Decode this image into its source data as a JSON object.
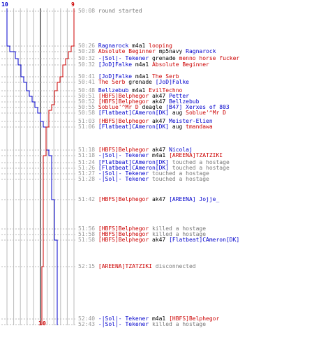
{
  "header": {
    "left_count": "10",
    "right_count": "9",
    "bottom_left": "1",
    "bottom_right": "0"
  },
  "colors": {
    "blue": "#0000cc",
    "red": "#cc0000",
    "gray": "#777777",
    "grid": "#bbbbbb"
  },
  "log": [
    {
      "time": "50:08",
      "segs": [
        {
          "t": "round started",
          "c": "g"
        }
      ]
    },
    {
      "time": "50:26",
      "segs": [
        {
          "t": "Ragnarock",
          "c": "b"
        },
        {
          "t": " m4a1 ",
          "c": "k"
        },
        {
          "t": "looping",
          "c": "r"
        }
      ]
    },
    {
      "time": "50:28",
      "segs": [
        {
          "t": "Absolute Beginner",
          "c": "r"
        },
        {
          "t": " mp5navy ",
          "c": "k"
        },
        {
          "t": "Ragnarock",
          "c": "b"
        }
      ]
    },
    {
      "time": "50:32",
      "segs": [
        {
          "t": "-|Sol|- Tekener",
          "c": "b"
        },
        {
          "t": " grenade ",
          "c": "k"
        },
        {
          "t": "menno horse fucker",
          "c": "r"
        }
      ]
    },
    {
      "time": "50:32",
      "segs": [
        {
          "t": "[JoD]Falke",
          "c": "b"
        },
        {
          "t": " m4a1 ",
          "c": "k"
        },
        {
          "t": "Absolute Beginner",
          "c": "r"
        }
      ]
    },
    {
      "time": "50:41",
      "segs": [
        {
          "t": "[JoD]Falke",
          "c": "b"
        },
        {
          "t": " m4a1 ",
          "c": "k"
        },
        {
          "t": "The Serb",
          "c": "r"
        }
      ]
    },
    {
      "time": "50:41",
      "segs": [
        {
          "t": "The Serb",
          "c": "r"
        },
        {
          "t": " grenade ",
          "c": "k"
        },
        {
          "t": "[JoD]Falke",
          "c": "b"
        }
      ]
    },
    {
      "time": "50:48",
      "segs": [
        {
          "t": "Bellzebub",
          "c": "b"
        },
        {
          "t": " m4a1 ",
          "c": "k"
        },
        {
          "t": "EvilTechno",
          "c": "r"
        }
      ]
    },
    {
      "time": "50:51",
      "segs": [
        {
          "t": "[HBFS]Belphegor",
          "c": "r"
        },
        {
          "t": " ak47 ",
          "c": "k"
        },
        {
          "t": "Petter",
          "c": "b"
        }
      ]
    },
    {
      "time": "50:52",
      "segs": [
        {
          "t": "[HBFS]Belphegor",
          "c": "r"
        },
        {
          "t": " ak47 ",
          "c": "k"
        },
        {
          "t": "Bellzebub",
          "c": "b"
        }
      ]
    },
    {
      "time": "50:55",
      "segs": [
        {
          "t": "Soblue'^Mr D",
          "c": "r"
        },
        {
          "t": " deagle ",
          "c": "k"
        },
        {
          "t": "[B47] Xerxes of 803",
          "c": "b"
        }
      ]
    },
    {
      "time": "50:58",
      "segs": [
        {
          "t": "[Flatbeat]CAmeron[DK]",
          "c": "b"
        },
        {
          "t": " aug ",
          "c": "k"
        },
        {
          "t": "Soblue'^Mr D",
          "c": "r"
        }
      ]
    },
    {
      "time": "51:03",
      "segs": [
        {
          "t": "[HBFS]Belphegor",
          "c": "r"
        },
        {
          "t": " ak47 ",
          "c": "k"
        },
        {
          "t": "Meister-Elien",
          "c": "b"
        }
      ]
    },
    {
      "time": "51:06",
      "segs": [
        {
          "t": "[Flatbeat]CAmeron[DK]",
          "c": "b"
        },
        {
          "t": " aug ",
          "c": "k"
        },
        {
          "t": "tmandawa",
          "c": "r"
        }
      ]
    },
    {
      "time": "51:18",
      "segs": [
        {
          "t": "[HBFS]Belphegor",
          "c": "r"
        },
        {
          "t": " ak47 ",
          "c": "k"
        },
        {
          "t": "Nicolaj",
          "c": "b"
        }
      ]
    },
    {
      "time": "51:18",
      "segs": [
        {
          "t": "-|Sol|- Tekener",
          "c": "b"
        },
        {
          "t": " m4a1 ",
          "c": "k"
        },
        {
          "t": "[AREENA]TZATZIKI",
          "c": "r"
        }
      ]
    },
    {
      "time": "51:24",
      "segs": [
        {
          "t": "[Flatbeat]CAmeron[DK]",
          "c": "b"
        },
        {
          "t": " touched a hostage",
          "c": "g"
        }
      ]
    },
    {
      "time": "51:26",
      "segs": [
        {
          "t": "[Flatbeat]CAmeron[DK]",
          "c": "b"
        },
        {
          "t": " touched a hostage",
          "c": "g"
        }
      ]
    },
    {
      "time": "51:27",
      "segs": [
        {
          "t": "-|Sol|- Tekener",
          "c": "b"
        },
        {
          "t": " touched a hostage",
          "c": "g"
        }
      ]
    },
    {
      "time": "51:28",
      "segs": [
        {
          "t": "-|Sol|- Tekener",
          "c": "b"
        },
        {
          "t": " touched a hostage",
          "c": "g"
        }
      ]
    },
    {
      "time": "51:42",
      "segs": [
        {
          "t": "[HBFS]Belphegor",
          "c": "r"
        },
        {
          "t": " ak47 ",
          "c": "k"
        },
        {
          "t": "[AREENA] Jojje_",
          "c": "b"
        }
      ]
    },
    {
      "time": "51:56",
      "segs": [
        {
          "t": "[HBFS]Belphegor",
          "c": "r"
        },
        {
          "t": " killed a hostage",
          "c": "g"
        }
      ]
    },
    {
      "time": "51:58",
      "segs": [
        {
          "t": "[HBFS]Belphegor",
          "c": "r"
        },
        {
          "t": " killed a hostage",
          "c": "g"
        }
      ]
    },
    {
      "time": "51:58",
      "segs": [
        {
          "t": "[HBFS]Belphegor",
          "c": "r"
        },
        {
          "t": " ak47 ",
          "c": "k"
        },
        {
          "t": "[Flatbeat]CAmeron[DK]",
          "c": "b"
        }
      ]
    },
    {
      "time": "52:15",
      "segs": [
        {
          "t": "[AREENA]TZATZIKI",
          "c": "r"
        },
        {
          "t": " disconnected",
          "c": "g"
        }
      ]
    },
    {
      "time": "52:40",
      "segs": [
        {
          "t": "-|Sol|- Tekener",
          "c": "b"
        },
        {
          "t": " m4a1 ",
          "c": "k"
        },
        {
          "t": "[HBFS]Belphegor",
          "c": "r"
        }
      ]
    },
    {
      "time": "52:43",
      "segs": [
        {
          "t": "-|Sol|- Tekener",
          "c": "b"
        },
        {
          "t": " killed a hostage",
          "c": "g"
        }
      ]
    }
  ]
}
